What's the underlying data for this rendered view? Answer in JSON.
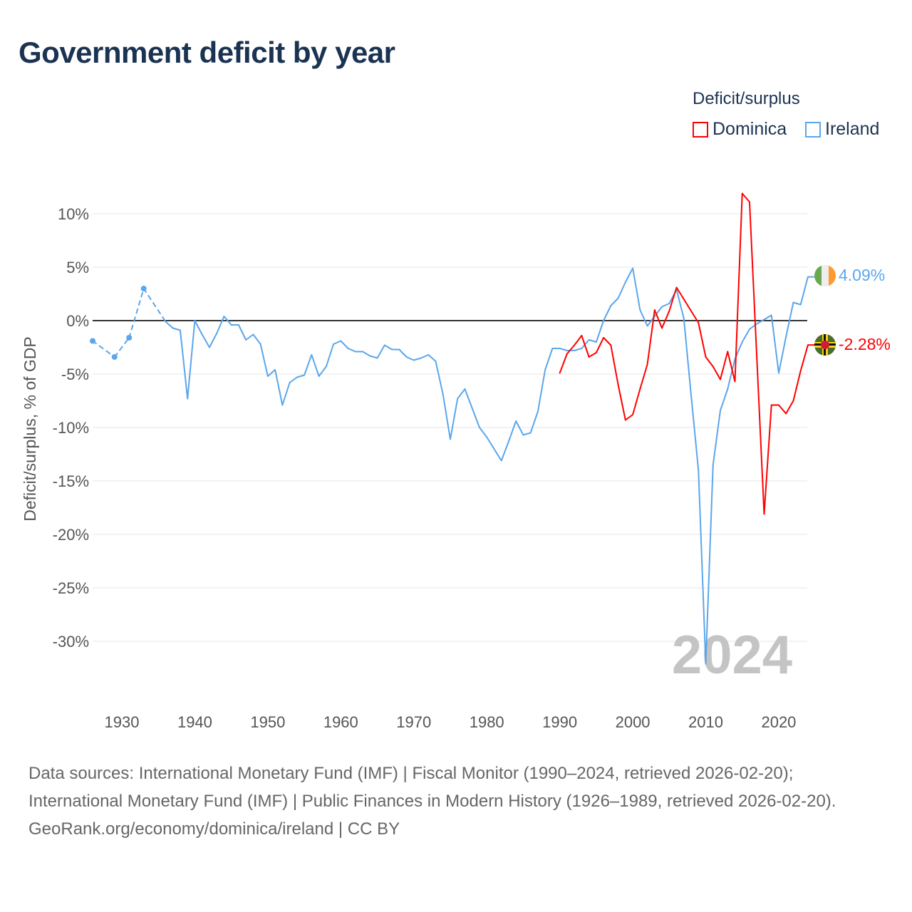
{
  "title": "Government deficit by year",
  "legend": {
    "title": "Deficit/surplus",
    "items": [
      {
        "label": "Dominica",
        "color": "#ff0000"
      },
      {
        "label": "Ireland",
        "color": "#5ba6ec"
      }
    ]
  },
  "footer": {
    "line1": "Data sources: International Monetary Fund (IMF) | Fiscal Monitor (1990–2024, retrieved 2026-02-20); International Monetary Fund (IMF) | Public Finances in Modern History (1926–1989, retrieved 2026-02-20).",
    "line2": "GeoRank.org/economy/dominica/ireland | CC BY"
  },
  "chart_data": {
    "type": "line",
    "title": "Government deficit by year",
    "xlabel": "",
    "ylabel": "Deficit/surplus, % of GDP",
    "xlim": [
      1926,
      2024
    ],
    "ylim": [
      -35,
      13
    ],
    "yticks": [
      10,
      5,
      0,
      -5,
      -10,
      -15,
      -20,
      -25,
      -30
    ],
    "ytick_labels": [
      "10%",
      "5%",
      "0%",
      "-5%",
      "-10%",
      "-15%",
      "-20%",
      "-25%",
      "-30%"
    ],
    "xticks": [
      1930,
      1940,
      1950,
      1960,
      1970,
      1980,
      1990,
      2000,
      2010,
      2020
    ],
    "xtick_labels": [
      "1930",
      "1940",
      "1950",
      "1960",
      "1970",
      "1980",
      "1990",
      "2000",
      "2010",
      "2020"
    ],
    "year_watermark": "2024",
    "grid": true,
    "legend_position": "top-right",
    "series": [
      {
        "name": "Ireland",
        "color": "#5ba6ec",
        "end_label": "4.09%",
        "x": [
          1926,
          1929,
          1931,
          1933,
          1936,
          1937,
          1938,
          1939,
          1940,
          1941,
          1942,
          1943,
          1944,
          1945,
          1946,
          1947,
          1948,
          1949,
          1950,
          1951,
          1952,
          1953,
          1954,
          1955,
          1956,
          1957,
          1958,
          1959,
          1960,
          1961,
          1962,
          1963,
          1964,
          1965,
          1966,
          1967,
          1968,
          1969,
          1970,
          1971,
          1972,
          1973,
          1974,
          1975,
          1976,
          1977,
          1978,
          1979,
          1980,
          1981,
          1982,
          1983,
          1984,
          1985,
          1986,
          1987,
          1988,
          1989,
          1990,
          1991,
          1992,
          1993,
          1994,
          1995,
          1996,
          1997,
          1998,
          1999,
          2000,
          2001,
          2002,
          2003,
          2004,
          2005,
          2006,
          2007,
          2008,
          2009,
          2010,
          2011,
          2012,
          2013,
          2014,
          2015,
          2016,
          2017,
          2018,
          2019,
          2020,
          2021,
          2022,
          2023,
          2024
        ],
        "y": [
          -1.9,
          -3.4,
          -1.6,
          3.0,
          -0.1,
          -0.7,
          -0.9,
          -7.3,
          0.0,
          -1.3,
          -2.5,
          -1.2,
          0.4,
          -0.4,
          -0.4,
          -1.8,
          -1.3,
          -2.2,
          -5.2,
          -4.6,
          -7.9,
          -5.8,
          -5.3,
          -5.1,
          -3.2,
          -5.2,
          -4.3,
          -2.2,
          -1.9,
          -2.6,
          -2.9,
          -2.9,
          -3.3,
          -3.5,
          -2.3,
          -2.7,
          -2.7,
          -3.4,
          -3.7,
          -3.5,
          -3.2,
          -3.8,
          -6.9,
          -11.1,
          -7.3,
          -6.4,
          -8.2,
          -10.0,
          -10.9,
          -12.0,
          -13.1,
          -11.3,
          -9.4,
          -10.7,
          -10.5,
          -8.5,
          -4.6,
          -2.6,
          -2.6,
          -2.8,
          -2.8,
          -2.6,
          -1.8,
          -2.0,
          0.0,
          1.4,
          2.1,
          3.6,
          4.9,
          1.0,
          -0.5,
          0.4,
          1.3,
          1.6,
          2.9,
          0.2,
          -7.0,
          -14.0,
          -32.1,
          -13.5,
          -8.4,
          -6.4,
          -3.6,
          -2.0,
          -0.8,
          -0.3,
          0.1,
          0.5,
          -4.9,
          -1.5,
          1.7,
          1.5,
          4.09
        ]
      },
      {
        "name": "Dominica",
        "color": "#ff0000",
        "end_label": "-2.28%",
        "x": [
          1990,
          1991,
          1992,
          1993,
          1994,
          1995,
          1996,
          1997,
          1998,
          1999,
          2000,
          2001,
          2002,
          2003,
          2004,
          2005,
          2006,
          2007,
          2008,
          2009,
          2010,
          2011,
          2012,
          2013,
          2014,
          2015,
          2016,
          2017,
          2018,
          2019,
          2020,
          2021,
          2022,
          2023,
          2024
        ],
        "y": [
          -4.9,
          -3.1,
          -2.3,
          -1.4,
          -3.4,
          -3.0,
          -1.6,
          -2.3,
          -6.0,
          -9.3,
          -8.8,
          -6.4,
          -4.1,
          1.0,
          -0.7,
          0.9,
          3.1,
          2.0,
          0.9,
          -0.2,
          -3.4,
          -4.3,
          -5.5,
          -2.9,
          -5.7,
          11.9,
          11.1,
          -3.5,
          -18.1,
          -7.9,
          -7.9,
          -8.7,
          -7.5,
          -4.7,
          -2.28
        ]
      }
    ]
  }
}
